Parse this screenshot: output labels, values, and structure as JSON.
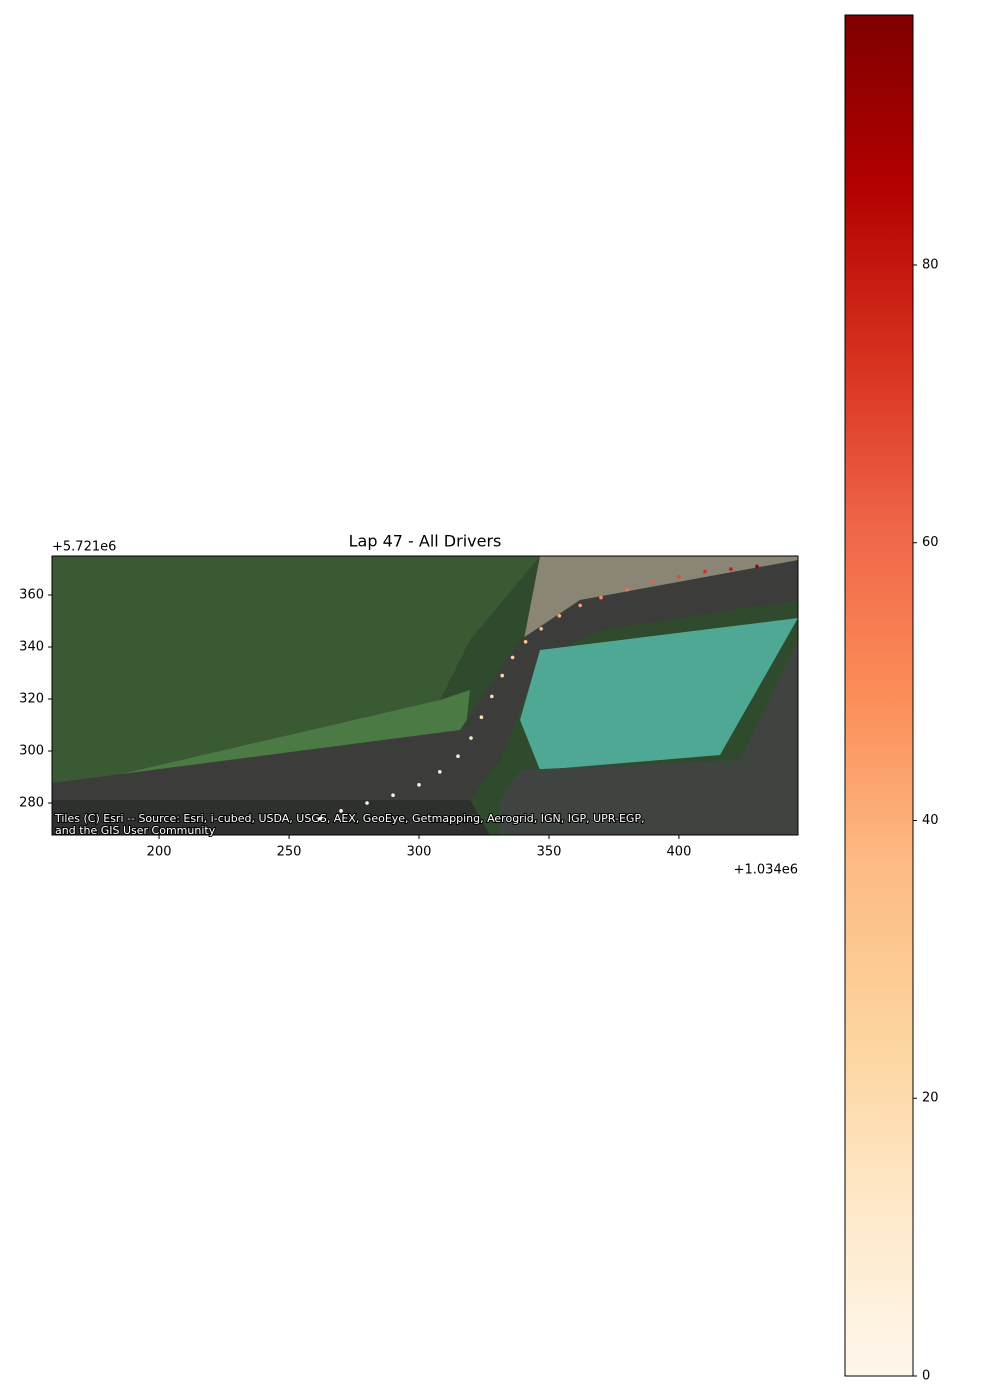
{
  "chart_data": {
    "type": "scatter",
    "title": "Lap 47 - All Drivers",
    "x_offset_label": "+1.034e6",
    "y_offset_label": "+5.721e6",
    "attribution": [
      "Tiles (C) Esri -- Source: Esri, i-cubed, USDA, USGS, AEX, GeoEye, Getmapping, Aerogrid, IGN, IGP, UPR-EGP,",
      "and the GIS User Community"
    ],
    "x": [
      262,
      270,
      280,
      290,
      300,
      308,
      315,
      320,
      324,
      328,
      332,
      336,
      341,
      347,
      354,
      362,
      370,
      380,
      390,
      400,
      410,
      420,
      430
    ],
    "y": [
      274,
      277,
      280,
      283,
      287,
      292,
      298,
      305,
      313,
      321,
      329,
      336,
      342,
      347,
      352,
      356,
      359,
      362,
      365,
      367,
      369,
      370,
      371
    ],
    "c": [
      2,
      3,
      4,
      5,
      6,
      8,
      10,
      12,
      15,
      18,
      22,
      26,
      30,
      35,
      40,
      45,
      50,
      56,
      62,
      68,
      74,
      80,
      88
    ],
    "xlim": [
      158.8,
      445.8
    ],
    "ylim": [
      267.7,
      375.0
    ],
    "xticks": [
      200,
      250,
      300,
      350,
      400
    ],
    "yticks": [
      280,
      300,
      320,
      340,
      360
    ],
    "colormap": "OrRd",
    "clim": [
      0,
      98
    ],
    "cticks": [
      0,
      20,
      40,
      60,
      80
    ]
  }
}
